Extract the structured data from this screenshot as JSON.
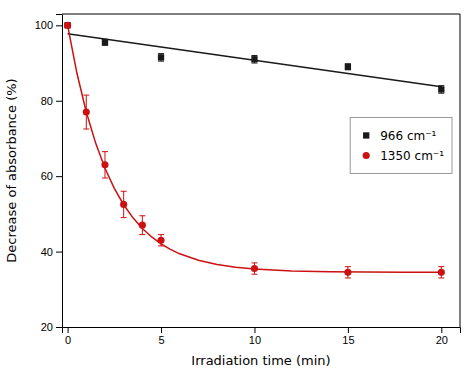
{
  "chart_data": {
    "type": "scatter",
    "xlabel": "Irradiation time (min)",
    "ylabel": "Decrease of absorbance (%)",
    "xlim": [
      -0.3,
      21
    ],
    "ylim": [
      20,
      103
    ],
    "xticks": [
      0,
      5,
      10,
      15,
      20
    ],
    "yticks": [
      20,
      40,
      60,
      80,
      100
    ],
    "grid": false,
    "legend": "right",
    "series": [
      {
        "type": "line",
        "color": "#1a1a1a",
        "line_style": "solid",
        "x": [
          0,
          20
        ],
        "values": [
          97.757,
          83.702
        ]
      },
      {
        "name": "966 cm⁻¹",
        "type": "scatter",
        "color": "#1a1a1a",
        "marker": "square",
        "x": [
          0,
          2,
          5,
          10,
          15,
          20
        ],
        "values": [
          100,
          95.5,
          91.5,
          91,
          89,
          83
        ],
        "yerr": [
          0.4,
          0.8,
          1.0,
          1.0,
          0.8,
          1.0
        ]
      },
      {
        "type": "line",
        "color": "#cc1111",
        "line_style": "solid",
        "x": [
          0,
          0.5,
          1,
          1.5,
          2,
          2.5,
          3,
          3.5,
          4,
          4.5,
          5,
          5.5,
          6,
          7,
          8,
          9,
          10,
          12,
          14,
          16,
          18,
          20
        ],
        "values": [
          100,
          87.276,
          77.023,
          68.762,
          62.106,
          56.744,
          52.422,
          48.941,
          46.135,
          43.875,
          42.054,
          40.586,
          39.404,
          37.684,
          36.567,
          35.842,
          35.371,
          34.867,
          34.655,
          34.565,
          34.528,
          34.512
        ]
      },
      {
        "name": "1350 cm⁻¹",
        "type": "scatter",
        "color": "#cc1111",
        "marker": "circle",
        "x": [
          0,
          1,
          2,
          3,
          4,
          5,
          10,
          15,
          20
        ],
        "values": [
          100,
          77,
          63,
          52.5,
          47,
          43,
          35.5,
          34.5,
          34.5
        ],
        "yerr": [
          0.4,
          4.5,
          3.5,
          3.5,
          2.5,
          1.5,
          1.5,
          1.5,
          1.5
        ]
      }
    ]
  }
}
